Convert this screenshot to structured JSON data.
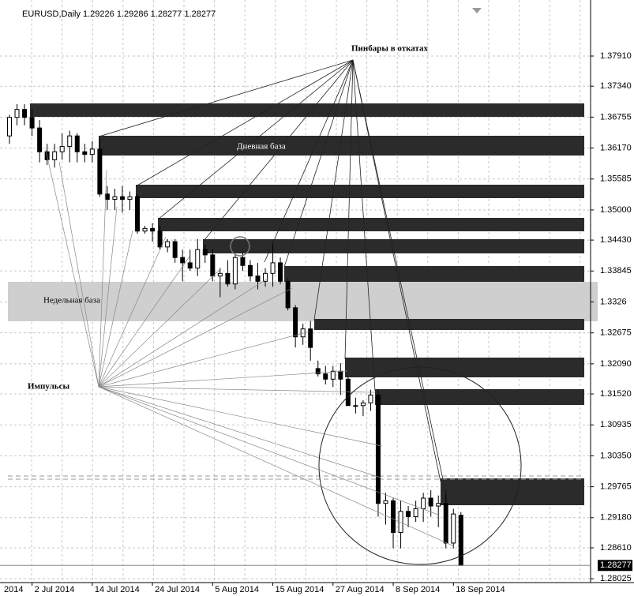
{
  "chart_data": {
    "type": "candlestick",
    "title": "EURUSD,Daily  1.29226 1.29286 1.28277 1.28277",
    "annotations": [
      "Пинбары в откатах",
      "Дневная база",
      "Недельная база",
      "Импульсы"
    ],
    "categories": [
      null,
      null,
      null,
      "2 Jul 2014",
      null,
      null,
      null,
      null,
      null,
      null,
      null,
      "14 Jul 2014",
      null,
      null,
      null,
      null,
      null,
      null,
      null,
      "24 Jul 2014",
      null,
      null,
      null,
      null,
      null,
      null,
      null,
      "5 Aug 2014",
      null,
      null,
      null,
      null,
      null,
      null,
      null,
      "15 Aug 2014",
      null,
      null,
      null,
      null,
      null,
      null,
      null,
      "27 Aug 2014",
      null,
      null,
      null,
      null,
      null,
      null,
      null,
      "8 Sep 2014",
      null,
      null,
      null,
      null,
      null,
      null,
      null,
      "18 Sep 2014",
      null
    ],
    "open": [
      1.364,
      1.3675,
      1.369,
      1.3675,
      1.3655,
      1.361,
      1.3595,
      1.361,
      1.362,
      1.364,
      1.361,
      1.3605,
      1.3615,
      1.353,
      1.352,
      1.3525,
      1.352,
      1.3525,
      1.346,
      1.3465,
      1.346,
      1.343,
      1.344,
      1.341,
      1.34,
      1.339,
      1.3425,
      1.3415,
      1.3375,
      1.338,
      1.336,
      1.341,
      1.3395,
      1.3375,
      1.3365,
      1.338,
      1.34,
      1.3365,
      1.3315,
      1.326,
      1.3275,
      1.32,
      1.319,
      1.318,
      1.3195,
      1.318,
      1.313,
      1.313,
      1.3135,
      1.315,
      1.2945,
      1.295,
      1.289,
      1.293,
      1.292,
      1.2935,
      1.2955,
      1.294,
      1.2945,
      1.287,
      1.29226
    ],
    "high": [
      1.368,
      1.37,
      1.37,
      1.369,
      1.367,
      1.3625,
      1.3625,
      1.3645,
      1.365,
      1.3645,
      1.3625,
      1.363,
      1.3635,
      1.3545,
      1.354,
      1.3545,
      1.3535,
      1.353,
      1.347,
      1.3475,
      1.347,
      1.3445,
      1.3445,
      1.3425,
      1.3425,
      1.3445,
      1.3435,
      1.3425,
      1.339,
      1.3405,
      1.3415,
      1.342,
      1.3405,
      1.34,
      1.339,
      1.344,
      1.341,
      1.337,
      1.332,
      1.3285,
      1.329,
      1.3215,
      1.3205,
      1.3205,
      1.321,
      1.3185,
      1.3145,
      1.314,
      1.316,
      1.316,
      1.2965,
      1.2955,
      1.295,
      1.294,
      1.295,
      1.2965,
      1.297,
      1.296,
      1.297,
      1.2935,
      1.29286
    ],
    "low": [
      1.3625,
      1.366,
      1.366,
      1.364,
      1.359,
      1.3585,
      1.358,
      1.3595,
      1.359,
      1.359,
      1.359,
      1.359,
      1.3525,
      1.35,
      1.35,
      1.3495,
      1.35,
      1.3455,
      1.3455,
      1.344,
      1.3425,
      1.342,
      1.34,
      1.3365,
      1.3385,
      1.3375,
      1.34,
      1.3365,
      1.3335,
      1.3355,
      1.335,
      1.3385,
      1.3365,
      1.335,
      1.3355,
      1.3355,
      1.336,
      1.331,
      1.324,
      1.3245,
      1.3215,
      1.3185,
      1.317,
      1.3165,
      1.315,
      1.313,
      1.3115,
      1.311,
      1.312,
      1.292,
      1.2905,
      1.286,
      1.286,
      1.29,
      1.291,
      1.291,
      1.292,
      1.29,
      1.286,
      1.286,
      1.28277
    ],
    "close": [
      1.3675,
      1.369,
      1.3675,
      1.3655,
      1.361,
      1.3595,
      1.361,
      1.362,
      1.364,
      1.361,
      1.3605,
      1.3615,
      1.353,
      1.352,
      1.3525,
      1.352,
      1.3525,
      1.346,
      1.3465,
      1.346,
      1.343,
      1.344,
      1.341,
      1.34,
      1.339,
      1.3425,
      1.3415,
      1.3375,
      1.338,
      1.336,
      1.341,
      1.3395,
      1.3375,
      1.3365,
      1.338,
      1.34,
      1.3365,
      1.3315,
      1.326,
      1.3275,
      1.324,
      1.319,
      1.318,
      1.3195,
      1.318,
      1.313,
      1.313,
      1.3135,
      1.315,
      1.2945,
      1.295,
      1.289,
      1.293,
      1.292,
      1.2935,
      1.2955,
      1.294,
      1.2945,
      1.287,
      1.2925,
      1.28277
    ],
    "ylim": [
      1.27953,
      1.3897
    ],
    "yticks": [
      {
        "value": 1.3791,
        "label": "1.37910"
      },
      {
        "value": 1.3734,
        "label": "1.37340"
      },
      1.36755,
      {
        "value": 1.3617,
        "label": "1.36170"
      },
      1.35585,
      {
        "value": 1.35,
        "label": "1.35000"
      },
      {
        "value": 1.3443,
        "label": "1.34430"
      },
      1.33845,
      1.3326,
      1.32675,
      {
        "value": 1.3209,
        "label": "1.32090"
      },
      {
        "value": 1.3152,
        "label": "1.31520"
      },
      1.30935,
      {
        "value": 1.3035,
        "label": "1.30350"
      },
      1.29765,
      {
        "value": 1.2918,
        "label": "1.29180"
      },
      {
        "value": 1.2861,
        "label": "1.28610"
      },
      1.28025
    ],
    "grid": true
  }
}
